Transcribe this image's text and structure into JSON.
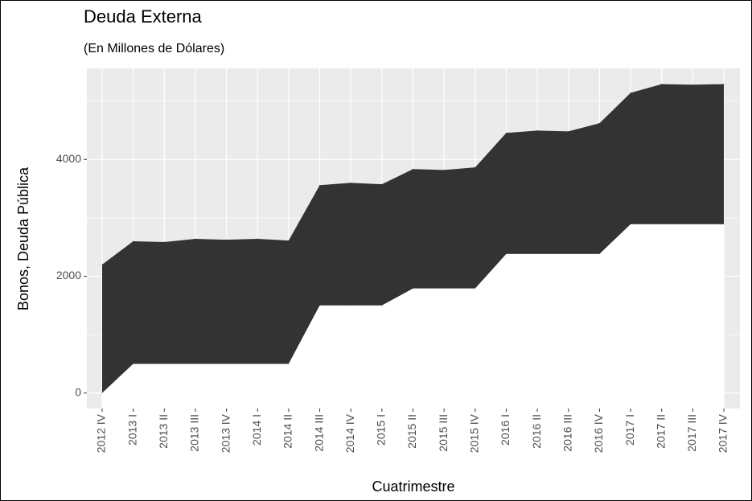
{
  "chart_data": {
    "type": "ribbon",
    "title": "Deuda Externa",
    "subtitle": "(En Millones de Dólares)",
    "x_label": "Cuatrimestre",
    "y_label": "Bonos, Deuda Pública",
    "categories": [
      "2012 IV",
      "2013 I",
      "2013 II",
      "2013 III",
      "2013 IV",
      "2014 I",
      "2014 II",
      "2014 III",
      "2014 IV",
      "2015 I",
      "2015 II",
      "2015 III",
      "2015 IV",
      "2016 I",
      "2016 II",
      "2016 III",
      "2016 IV",
      "2017 I",
      "2017 II",
      "2017 III",
      "2017 IV"
    ],
    "ymin": [
      0,
      500,
      500,
      500,
      500,
      500,
      500,
      1500,
      1500,
      1500,
      1790,
      1790,
      1790,
      2380,
      2380,
      2380,
      2380,
      2890,
      2890,
      2890,
      2890
    ],
    "ymax": [
      2200,
      2600,
      2585,
      2640,
      2625,
      2640,
      2612,
      3560,
      3600,
      3575,
      3835,
      3820,
      3865,
      4455,
      4495,
      4480,
      4620,
      5140,
      5290,
      5280,
      5290
    ],
    "color": "#333333",
    "ylim": [
      -265,
      5560
    ],
    "yticks": [
      0,
      2000,
      4000
    ],
    "minor_yticks": [
      1000,
      3000,
      5000
    ],
    "grid": true
  }
}
